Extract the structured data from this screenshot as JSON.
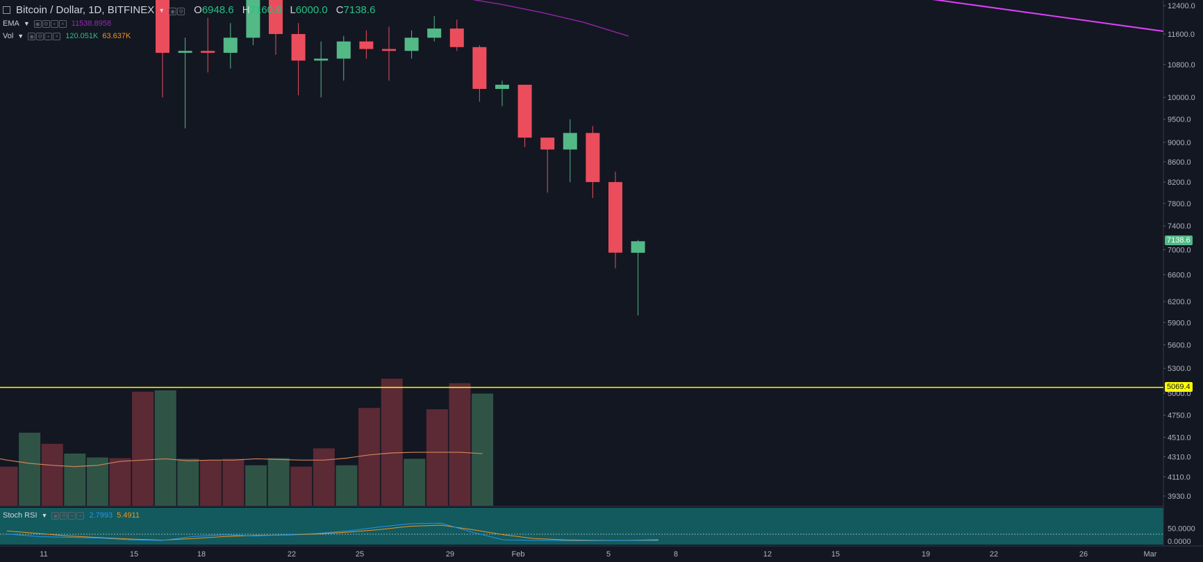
{
  "header": {
    "symbol_title": "Bitcoin / Dollar, 1D, BITFINEX",
    "open_key": "O",
    "open_val": "6948.6",
    "high_key": "H",
    "high_val": "7160.8",
    "low_key": "L",
    "low_val": "6000.0",
    "close_key": "C",
    "close_val": "7138.6"
  },
  "indicators": {
    "ema": {
      "label": "EMA",
      "value": "11538.8958",
      "color": "#9c27b0"
    },
    "vol": {
      "label": "Vol",
      "value1": "120.051K",
      "value2": "63.637K",
      "color1": "#26c281",
      "color2": "#f7931a"
    },
    "stoch": {
      "label": "Stoch RSI",
      "k": "2.7993",
      "d": "5.4911",
      "k_color": "#2196f3",
      "d_color": "#f7931a"
    }
  },
  "price_axis": {
    "ticks": [
      "12400.0",
      "11600.0",
      "10800.0",
      "10000.0",
      "9500.0",
      "9000.0",
      "8600.0",
      "8200.0",
      "7800.0",
      "7400.0",
      "7000.0",
      "6600.0",
      "6200.0",
      "5900.0",
      "5600.0",
      "5300.0",
      "5000.0",
      "4750.0",
      "4510.0",
      "4310.0",
      "4110.0",
      "3930.0"
    ],
    "current_price_tag": "7138.6",
    "line_price_tag": "5069.4"
  },
  "stoch_axis": {
    "ticks": [
      "50.0000",
      "0.0000"
    ]
  },
  "time_axis": {
    "labels": [
      "11",
      "15",
      "18",
      "22",
      "25",
      "29",
      "Feb",
      "5",
      "8",
      "12",
      "15",
      "19",
      "22",
      "26",
      "Mar"
    ]
  },
  "colors": {
    "up": "#53b987",
    "down": "#eb4d5c",
    "horizontal_line": "#ffff00",
    "ema_line": "#9c27b0",
    "trend_line": "#e040fb",
    "stoch_bg": "#125a5e"
  },
  "chart_data": {
    "type": "candlestick",
    "timeframe": "1D",
    "candles": [
      {
        "o": 12800,
        "h": 13000,
        "l": 10000,
        "c": 11100
      },
      {
        "o": 11100,
        "h": 11500,
        "l": 9300,
        "c": 11150
      },
      {
        "o": 11150,
        "h": 12050,
        "l": 10600,
        "c": 11100
      },
      {
        "o": 11100,
        "h": 11900,
        "l": 10700,
        "c": 11500
      },
      {
        "o": 11500,
        "h": 13000,
        "l": 11300,
        "c": 12800
      },
      {
        "o": 12800,
        "h": 13000,
        "l": 11050,
        "c": 11600
      },
      {
        "o": 11600,
        "h": 11900,
        "l": 10050,
        "c": 10900
      },
      {
        "o": 10900,
        "h": 11400,
        "l": 10000,
        "c": 10950
      },
      {
        "o": 10950,
        "h": 11550,
        "l": 10400,
        "c": 11400
      },
      {
        "o": 11400,
        "h": 11700,
        "l": 10950,
        "c": 11200
      },
      {
        "o": 11200,
        "h": 11800,
        "l": 10400,
        "c": 11150
      },
      {
        "o": 11150,
        "h": 11700,
        "l": 10950,
        "c": 11500
      },
      {
        "o": 11500,
        "h": 12100,
        "l": 11400,
        "c": 11750
      },
      {
        "o": 11750,
        "h": 12000,
        "l": 11150,
        "c": 11250
      },
      {
        "o": 11250,
        "h": 11300,
        "l": 9900,
        "c": 10200
      },
      {
        "o": 10200,
        "h": 10400,
        "l": 9800,
        "c": 10300
      },
      {
        "o": 10300,
        "h": 10300,
        "l": 8900,
        "c": 9100
      },
      {
        "o": 9100,
        "h": 9100,
        "l": 8000,
        "c": 8850
      },
      {
        "o": 8850,
        "h": 9500,
        "l": 8200,
        "c": 9200
      },
      {
        "o": 9200,
        "h": 9350,
        "l": 7900,
        "c": 8200
      },
      {
        "o": 8200,
        "h": 8400,
        "l": 6700,
        "c": 6950
      },
      {
        "o": 6948.6,
        "h": 7160.8,
        "l": 6000,
        "c": 7138.6
      }
    ],
    "volume": [
      0.6,
      1.12,
      0.95,
      0.8,
      0.74,
      0.73,
      1.75,
      1.77,
      0.72,
      0.7,
      0.72,
      0.62,
      0.73,
      0.6,
      0.88,
      0.62,
      1.5,
      1.95,
      0.72,
      1.48,
      1.88,
      1.72
    ],
    "volume_ma": [
      0.7,
      0.65,
      0.62,
      0.6,
      0.62,
      0.68,
      0.7,
      0.72,
      0.69,
      0.7,
      0.7,
      0.72,
      0.71,
      0.7,
      0.7,
      0.73,
      0.78,
      0.81,
      0.82,
      0.82,
      0.82,
      0.8
    ],
    "stoch_k": [
      28,
      18,
      15,
      12,
      5,
      3,
      18,
      25,
      20,
      25,
      30,
      40,
      55,
      68,
      70,
      35,
      5,
      3,
      2,
      2,
      3,
      2.8
    ],
    "stoch_d": [
      40,
      30,
      20,
      14,
      8,
      4,
      10,
      18,
      22,
      24,
      28,
      35,
      45,
      58,
      62,
      45,
      25,
      10,
      5,
      3,
      3,
      5.5
    ],
    "horizontal_line": 5069.4,
    "ema_current": 11538.8958
  }
}
